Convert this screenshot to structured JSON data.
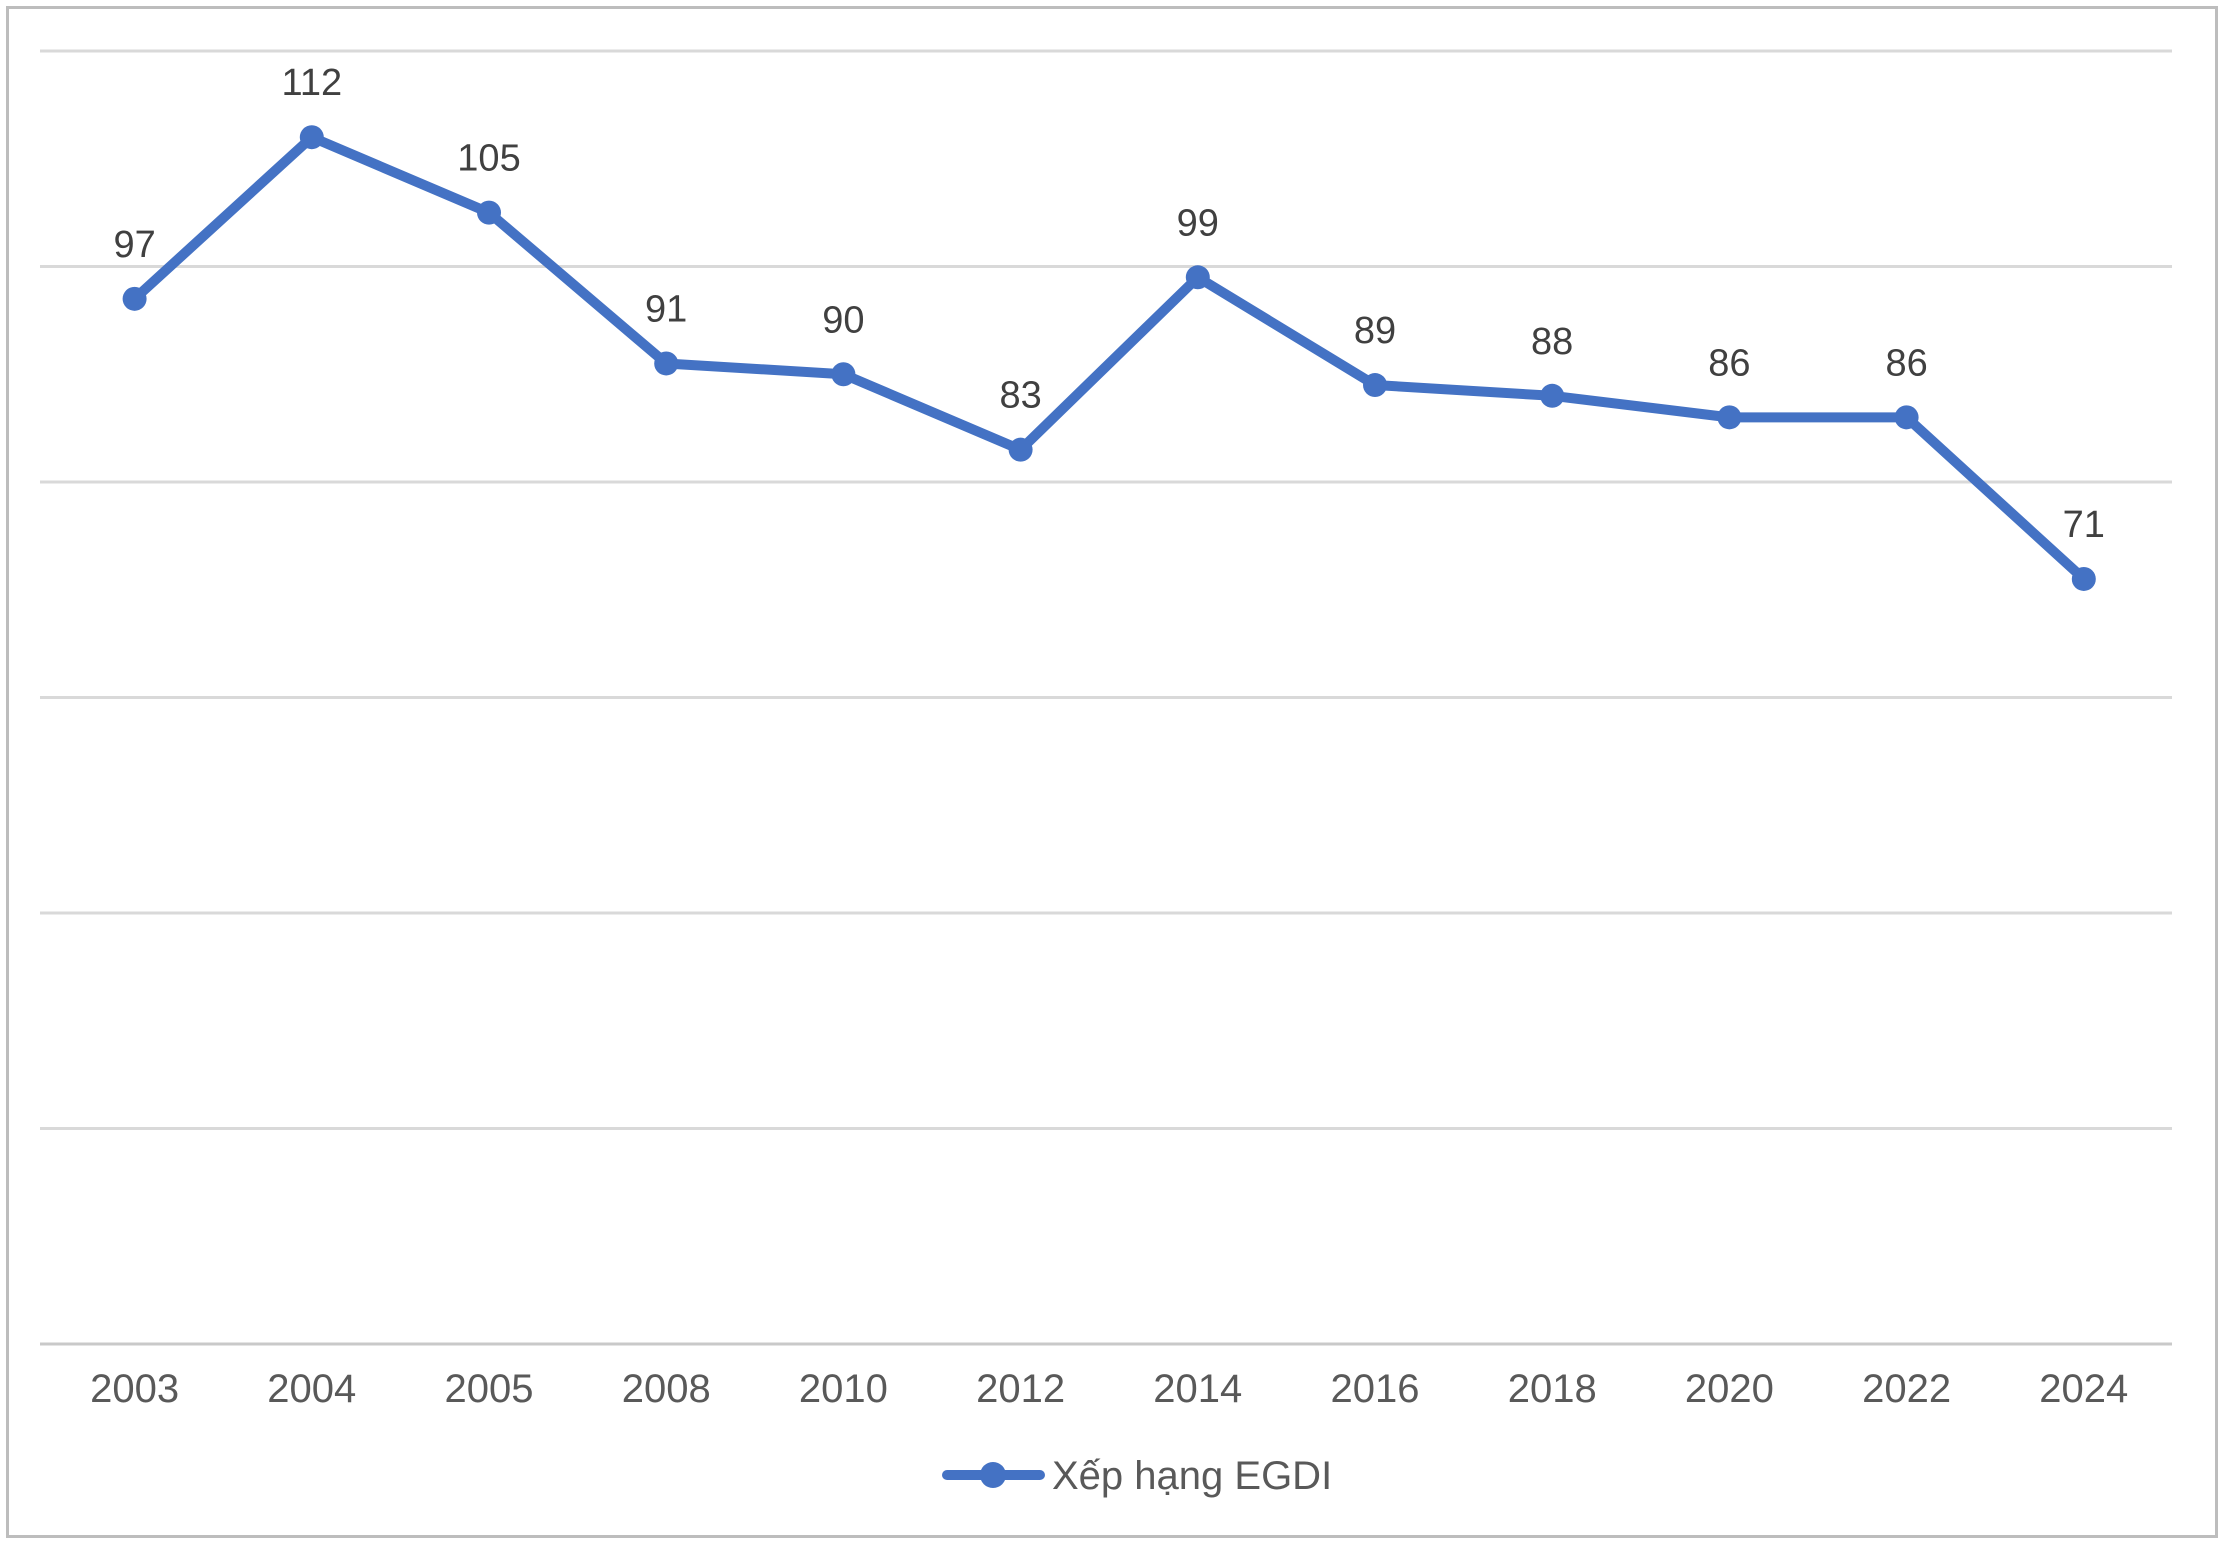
{
  "chart_data": {
    "type": "line",
    "title": "",
    "categories": [
      "2003",
      "2004",
      "2005",
      "2008",
      "2010",
      "2012",
      "2014",
      "2016",
      "2018",
      "2020",
      "2022",
      "2024"
    ],
    "series": [
      {
        "name": "Xếp hạng EGDI",
        "values": [
          97,
          112,
          105,
          91,
          90,
          83,
          99,
          89,
          88,
          86,
          86,
          71
        ],
        "color": "#4472C4"
      }
    ],
    "ylim": [
      0,
      120
    ],
    "y_major_unit": 20,
    "grid": "horizontal",
    "y_axis_labels_visible": false,
    "data_labels_position": "above",
    "marker": "circle",
    "legend_position": "bottom-center"
  },
  "colors": {
    "line": "#4472C4",
    "gridline": "#D9D9D9",
    "axis_line": "#C9C9C9",
    "data_label": "#404040",
    "axis_label": "#595959",
    "legend_label": "#595959",
    "frame_border": "#BDBDBD",
    "background": "#FFFFFF"
  }
}
